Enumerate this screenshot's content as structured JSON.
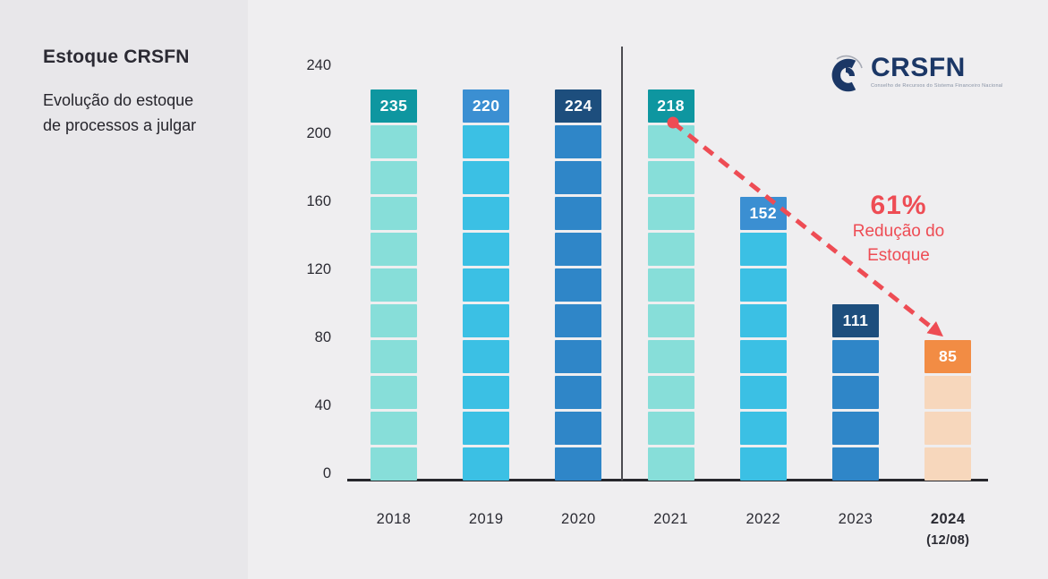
{
  "sidebar": {
    "title": "Estoque CRSFN",
    "subtitle_line1": "Evolução do estoque",
    "subtitle_line2": "de processos a julgar"
  },
  "logo": {
    "name": "CRSFN",
    "tagline": "Conselho de Recursos do Sistema Financeiro Nacional"
  },
  "annotation": {
    "percent": "61%",
    "line1": "Redução do",
    "line2": "Estoque",
    "color": "#ee4c54"
  },
  "colors": {
    "background_main": "#efeef0",
    "background_sidebar": "#e8e7ea",
    "axis": "#27272c",
    "teal": "#0e96a0",
    "aqua": "#87ded9",
    "blue": "#3b8fd2",
    "cyan": "#3bc0e4",
    "navy": "#1d4e7d",
    "mid_blue": "#2f86c8",
    "orange": "#f28c44",
    "peach": "#f7d7bc",
    "red": "#ee4c54",
    "logo_navy": "#1b3766"
  },
  "chart_data": {
    "type": "bar",
    "title": "Estoque CRSFN — Evolução do estoque de processos a julgar",
    "categories": [
      "2018",
      "2019",
      "2020",
      "2021",
      "2022",
      "2023",
      "2024 (12/08)"
    ],
    "values": [
      235,
      220,
      224,
      218,
      152,
      111,
      85
    ],
    "xlabel": "",
    "ylabel": "",
    "ylim": [
      0,
      240
    ],
    "yticks": [
      0,
      40,
      80,
      120,
      160,
      200,
      240
    ],
    "grid": false,
    "legend": "none",
    "annotation": {
      "text": "61% Redução do Estoque",
      "from_category": "2021",
      "from_value": 218,
      "to_category": "2024 (12/08)",
      "to_value": 85,
      "style": "dashed-red-arrow"
    }
  },
  "bars": [
    {
      "year": "2018",
      "value": 235,
      "label_bg": "#0e96a0",
      "body_bg": "#87ded9",
      "body_segments": 10,
      "year_bold": false,
      "year_sub": ""
    },
    {
      "year": "2019",
      "value": 220,
      "label_bg": "#3b8fd2",
      "body_bg": "#3bc0e4",
      "body_segments": 10,
      "year_bold": false,
      "year_sub": ""
    },
    {
      "year": "2020",
      "value": 224,
      "label_bg": "#1d4e7d",
      "body_bg": "#2f86c8",
      "body_segments": 10,
      "year_bold": false,
      "year_sub": ""
    },
    {
      "year": "2021",
      "value": 218,
      "label_bg": "#0e96a0",
      "body_bg": "#87ded9",
      "body_segments": 10,
      "year_bold": false,
      "year_sub": ""
    },
    {
      "year": "2022",
      "value": 152,
      "label_bg": "#3b8fd2",
      "body_bg": "#3bc0e4",
      "body_segments": 7,
      "year_bold": false,
      "year_sub": ""
    },
    {
      "year": "2023",
      "value": 111,
      "label_bg": "#1d4e7d",
      "body_bg": "#2f86c8",
      "body_segments": 4,
      "year_bold": false,
      "year_sub": ""
    },
    {
      "year": "2024",
      "value": 85,
      "label_bg": "#f28c44",
      "body_bg": "#f7d7bc",
      "body_segments": 3,
      "year_bold": true,
      "year_sub": "(12/08)"
    }
  ]
}
